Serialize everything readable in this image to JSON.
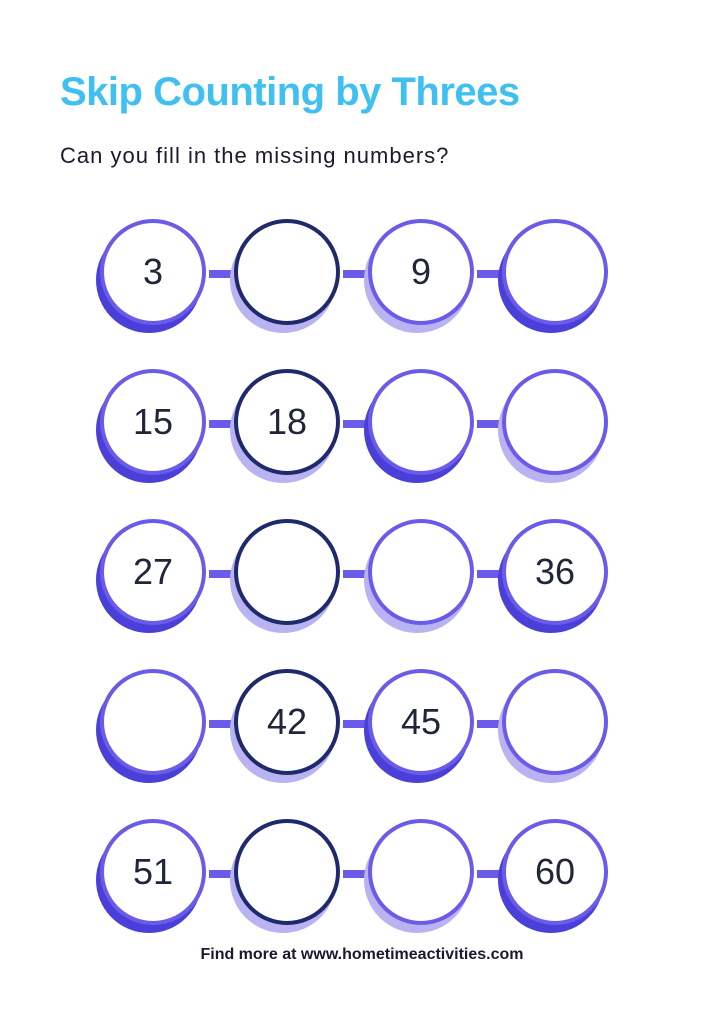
{
  "title": "Skip Counting by Threes",
  "subtitle": "Can you fill in the missing numbers?",
  "footer": "Find more at www.hometimeactivities.com",
  "colors": {
    "title": "#3fc0f0",
    "subtitle": "#1a1a2e",
    "text": "#20263a",
    "footer": "#1a1a2e",
    "border_light": "#6a5ce8",
    "border_dark": "#1e2a6b",
    "shadow_soft": "#b9b3f2",
    "shadow_hard": "#4a3fd8",
    "connector": "#6a5ce8"
  },
  "rows": [
    {
      "circles": [
        {
          "value": "3",
          "shadow": "hard",
          "border": "light"
        },
        {
          "value": "",
          "shadow": "soft",
          "border": "dark"
        },
        {
          "value": "9",
          "shadow": "soft",
          "border": "light"
        },
        {
          "value": "",
          "shadow": "hard",
          "border": "light"
        }
      ]
    },
    {
      "circles": [
        {
          "value": "15",
          "shadow": "hard",
          "border": "light"
        },
        {
          "value": "18",
          "shadow": "soft",
          "border": "dark"
        },
        {
          "value": "",
          "shadow": "hard",
          "border": "light"
        },
        {
          "value": "",
          "shadow": "soft",
          "border": "light"
        }
      ]
    },
    {
      "circles": [
        {
          "value": "27",
          "shadow": "hard",
          "border": "light"
        },
        {
          "value": "",
          "shadow": "soft",
          "border": "dark"
        },
        {
          "value": "",
          "shadow": "soft",
          "border": "light"
        },
        {
          "value": "36",
          "shadow": "hard",
          "border": "light"
        }
      ]
    },
    {
      "circles": [
        {
          "value": "",
          "shadow": "hard",
          "border": "light"
        },
        {
          "value": "42",
          "shadow": "soft",
          "border": "dark"
        },
        {
          "value": "45",
          "shadow": "hard",
          "border": "light"
        },
        {
          "value": "",
          "shadow": "soft",
          "border": "light"
        }
      ]
    },
    {
      "circles": [
        {
          "value": "51",
          "shadow": "hard",
          "border": "light"
        },
        {
          "value": "",
          "shadow": "soft",
          "border": "dark"
        },
        {
          "value": "",
          "shadow": "soft",
          "border": "light"
        },
        {
          "value": "60",
          "shadow": "hard",
          "border": "light"
        }
      ]
    }
  ]
}
